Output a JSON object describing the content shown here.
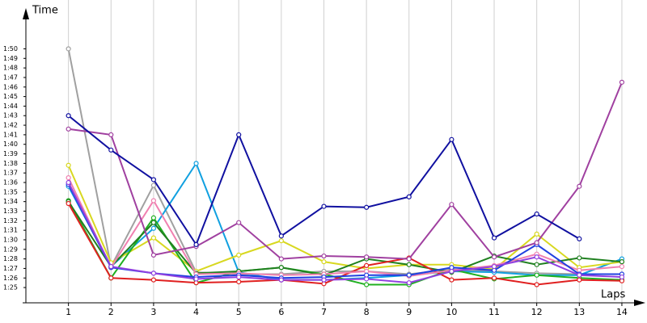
{
  "chart_data": {
    "type": "line",
    "y_label": "Time",
    "x_label": "Laps",
    "xlim": [
      0,
      14.4
    ],
    "xticks": [
      1,
      2,
      3,
      4,
      5,
      6,
      7,
      8,
      9,
      10,
      11,
      12,
      13,
      14
    ],
    "ylim": [
      83.4,
      113
    ],
    "yticks": [
      {
        "value": 85,
        "label": "1:25"
      },
      {
        "value": 86,
        "label": "1:26"
      },
      {
        "value": 87,
        "label": "1:27"
      },
      {
        "value": 88,
        "label": "1:28"
      },
      {
        "value": 89,
        "label": "1:29"
      },
      {
        "value": 90,
        "label": "1:30"
      },
      {
        "value": 91,
        "label": "1:31"
      },
      {
        "value": 92,
        "label": "1:32"
      },
      {
        "value": 93,
        "label": "1:33"
      },
      {
        "value": 94,
        "label": "1:34"
      },
      {
        "value": 95,
        "label": "1:35"
      },
      {
        "value": 96,
        "label": "1:36"
      },
      {
        "value": 97,
        "label": "1:37"
      },
      {
        "value": 98,
        "label": "1:38"
      },
      {
        "value": 99,
        "label": "1:39"
      },
      {
        "value": 100,
        "label": "1:40"
      },
      {
        "value": 101,
        "label": "1:41"
      },
      {
        "value": 102,
        "label": "1:42"
      },
      {
        "value": 103,
        "label": "1:43"
      },
      {
        "value": 104,
        "label": "1:44"
      },
      {
        "value": 105,
        "label": "1:45"
      },
      {
        "value": 106,
        "label": "1:46"
      },
      {
        "value": 107,
        "label": "1:47"
      },
      {
        "value": 108,
        "label": "1:48"
      },
      {
        "value": 109,
        "label": "1:49"
      },
      {
        "value": 110,
        "label": "1:50"
      }
    ],
    "grid": "x",
    "x": [
      1,
      2,
      3,
      4,
      5,
      6,
      7,
      8,
      9,
      10,
      11,
      12,
      13,
      14
    ],
    "series": [
      {
        "color": "#a0a0a0",
        "values": [
          110,
          87.2,
          95.7,
          86.6,
          86.4,
          86.4,
          86.7,
          86.7,
          86.4,
          86.9,
          86.7,
          86.5,
          86.4,
          86.4
        ]
      },
      {
        "color": "#10a0e0",
        "values": [
          95.6,
          87.2,
          91.2,
          98.0,
          86.6,
          85.8,
          85.8,
          86.0,
          86.3,
          86.7,
          86.6,
          86.3,
          86.3,
          88.0
        ]
      },
      {
        "color": "#d8d820",
        "values": [
          97.8,
          87.6,
          90.2,
          86.7,
          88.4,
          89.9,
          87.7,
          87.0,
          87.4,
          87.4,
          86.9,
          90.6,
          87.1,
          87.7
        ]
      },
      {
        "color": "#20b020",
        "values": [
          94.1,
          86.0,
          92.3,
          85.5,
          86.7,
          87.1,
          86.4,
          85.3,
          85.3,
          86.9,
          85.9,
          86.3,
          86.0,
          85.8
        ]
      },
      {
        "color": "#208020",
        "values": [
          94.0,
          87.2,
          91.8,
          86.5,
          86.7,
          87.1,
          86.3,
          88.0,
          87.4,
          86.6,
          88.3,
          87.4,
          88.1,
          87.7
        ]
      },
      {
        "color": "#e02020",
        "values": [
          93.8,
          86.0,
          85.8,
          85.5,
          85.6,
          85.8,
          85.4,
          87.3,
          88.1,
          85.8,
          86.0,
          85.3,
          85.8,
          85.7
        ]
      },
      {
        "color": "#f080b0",
        "values": [
          96.5,
          87.1,
          94.1,
          86.4,
          86.5,
          86.3,
          86.4,
          86.7,
          86.2,
          86.8,
          87.3,
          88.5,
          86.8,
          87.2
        ]
      },
      {
        "color": "#2040e0",
        "values": [
          95.8,
          87.1,
          86.5,
          86.1,
          86.3,
          86.0,
          86.1,
          86.3,
          86.3,
          87.1,
          86.8,
          89.5,
          86.4,
          86.4
        ]
      },
      {
        "color": "#9040e0",
        "values": [
          96.0,
          87.2,
          86.5,
          85.9,
          86.1,
          85.8,
          85.8,
          85.9,
          85.5,
          86.7,
          87.2,
          88.2,
          86.3,
          86.1
        ]
      },
      {
        "color": "#a040a0",
        "values": [
          101.6,
          101.0,
          88.4,
          89.3,
          91.8,
          88.0,
          88.3,
          88.2,
          88.0,
          93.7,
          88.2,
          89.7,
          95.6,
          106.5
        ]
      },
      {
        "color": "#1010a0",
        "values": [
          103.0,
          99.4,
          96.3,
          89.5,
          101.0,
          90.4,
          93.5,
          93.4,
          94.5,
          100.5,
          90.2,
          92.7,
          90.1,
          null
        ]
      }
    ]
  }
}
